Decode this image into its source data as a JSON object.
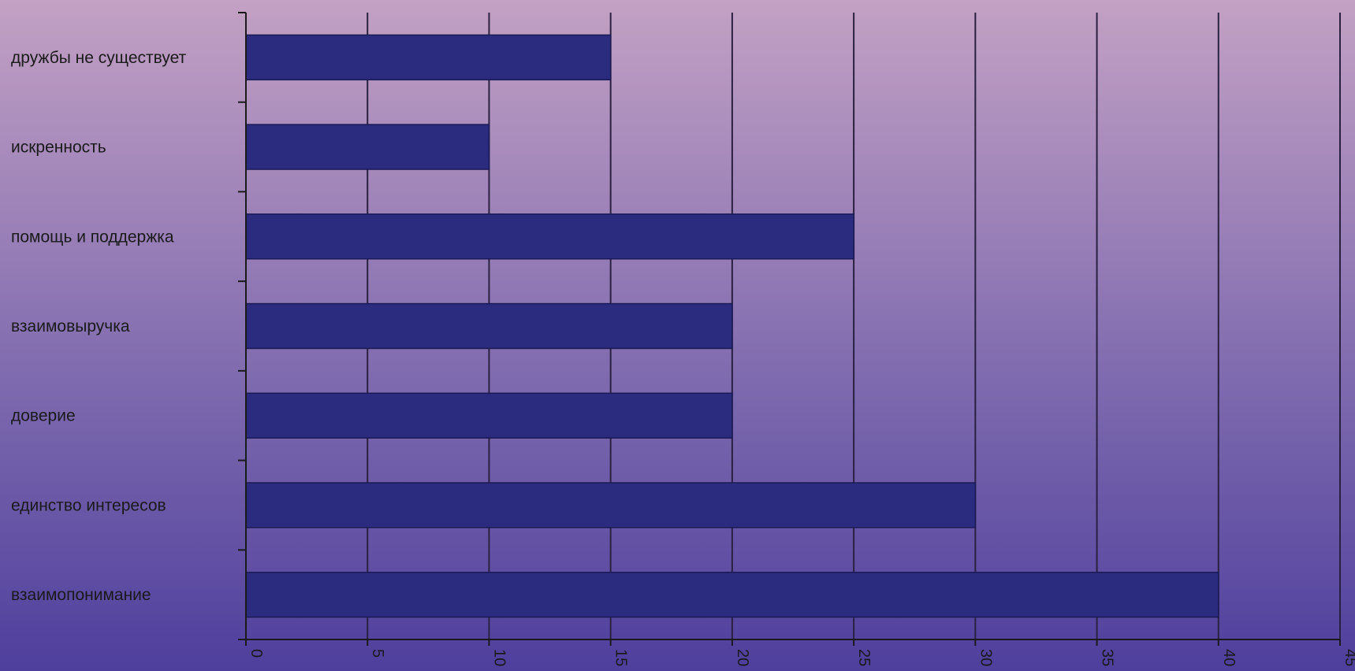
{
  "chart_data": {
    "type": "bar",
    "orientation": "horizontal",
    "title": "",
    "xlabel": "",
    "ylabel": "",
    "categories": [
      "дружбы не существует",
      "искренность",
      " помощь и поддержка",
      "взаимовыручка",
      "доверие",
      "единство интересов",
      "взаимопонимание"
    ],
    "values": [
      15,
      10,
      25,
      20,
      20,
      30,
      40
    ],
    "xlim": [
      0,
      45
    ],
    "xticks": [
      0,
      5,
      10,
      15,
      20,
      25,
      30,
      35,
      40,
      45
    ],
    "grid": "vertical",
    "legend": "none",
    "colors": {
      "bar": "#2b2b80",
      "bar_edge": "#1a1a55",
      "grid": "#2a2040",
      "axis": "#1a1a1a",
      "text": "#1a1a1a"
    }
  }
}
